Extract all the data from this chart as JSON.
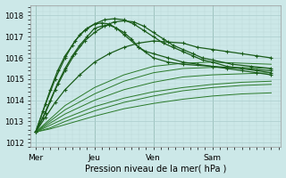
{
  "title": "Pression niveau de la mer( hPa )",
  "ylabel_ticks": [
    1012,
    1013,
    1014,
    1015,
    1016,
    1017,
    1018
  ],
  "ylim": [
    1011.8,
    1018.5
  ],
  "xlim": [
    -2,
    100
  ],
  "xtick_positions": [
    0,
    24,
    48,
    72
  ],
  "xtick_labels": [
    "Mer",
    "Jeu",
    "Ven",
    "Sam"
  ],
  "vlines": [
    0,
    24,
    48,
    72
  ],
  "bg_color": "#cce8e8",
  "grid_color_major": "#aacccc",
  "grid_color_minor": "#bcd8d8",
  "line_color_detailed": "#1a5c1a",
  "line_color_thin": "#2a7a2a",
  "series": [
    {
      "points": [
        [
          0,
          1012.5
        ],
        [
          3,
          1013.2
        ],
        [
          6,
          1014.0
        ],
        [
          9,
          1014.8
        ],
        [
          12,
          1015.5
        ],
        [
          15,
          1016.1
        ],
        [
          18,
          1016.6
        ],
        [
          21,
          1017.0
        ],
        [
          24,
          1017.4
        ],
        [
          27,
          1017.5
        ],
        [
          30,
          1017.55
        ],
        [
          33,
          1017.4
        ],
        [
          36,
          1017.2
        ],
        [
          39,
          1016.9
        ],
        [
          42,
          1016.5
        ],
        [
          45,
          1016.3
        ],
        [
          48,
          1016.2
        ],
        [
          54,
          1016.0
        ],
        [
          60,
          1015.8
        ],
        [
          66,
          1015.7
        ],
        [
          72,
          1015.6
        ],
        [
          78,
          1015.5
        ],
        [
          84,
          1015.4
        ],
        [
          90,
          1015.3
        ],
        [
          96,
          1015.2
        ]
      ],
      "style": "detailed"
    },
    {
      "points": [
        [
          0,
          1012.5
        ],
        [
          3,
          1013.5
        ],
        [
          6,
          1014.5
        ],
        [
          9,
          1015.4
        ],
        [
          12,
          1016.1
        ],
        [
          15,
          1016.6
        ],
        [
          18,
          1017.1
        ],
        [
          21,
          1017.4
        ],
        [
          24,
          1017.6
        ],
        [
          27,
          1017.65
        ],
        [
          30,
          1017.6
        ],
        [
          33,
          1017.4
        ],
        [
          36,
          1017.1
        ],
        [
          42,
          1016.5
        ],
        [
          48,
          1016.0
        ],
        [
          54,
          1015.8
        ],
        [
          60,
          1015.7
        ],
        [
          72,
          1015.6
        ],
        [
          84,
          1015.5
        ],
        [
          96,
          1015.4
        ]
      ],
      "style": "detailed"
    },
    {
      "points": [
        [
          0,
          1012.5
        ],
        [
          4,
          1013.8
        ],
        [
          8,
          1015.0
        ],
        [
          12,
          1016.0
        ],
        [
          16,
          1016.8
        ],
        [
          20,
          1017.3
        ],
        [
          24,
          1017.6
        ],
        [
          28,
          1017.8
        ],
        [
          32,
          1017.85
        ],
        [
          36,
          1017.8
        ],
        [
          40,
          1017.6
        ],
        [
          44,
          1017.3
        ],
        [
          48,
          1017.0
        ],
        [
          52,
          1016.7
        ],
        [
          56,
          1016.5
        ],
        [
          60,
          1016.3
        ],
        [
          64,
          1016.1
        ],
        [
          68,
          1015.9
        ],
        [
          72,
          1015.8
        ],
        [
          78,
          1015.6
        ],
        [
          84,
          1015.5
        ],
        [
          90,
          1015.4
        ],
        [
          96,
          1015.3
        ]
      ],
      "style": "detailed"
    },
    {
      "points": [
        [
          0,
          1012.5
        ],
        [
          4,
          1013.4
        ],
        [
          8,
          1014.5
        ],
        [
          12,
          1015.4
        ],
        [
          16,
          1016.2
        ],
        [
          20,
          1016.8
        ],
        [
          24,
          1017.2
        ],
        [
          28,
          1017.5
        ],
        [
          32,
          1017.7
        ],
        [
          36,
          1017.75
        ],
        [
          40,
          1017.7
        ],
        [
          44,
          1017.5
        ],
        [
          48,
          1017.2
        ],
        [
          52,
          1016.9
        ],
        [
          56,
          1016.6
        ],
        [
          60,
          1016.4
        ],
        [
          64,
          1016.2
        ],
        [
          68,
          1016.0
        ],
        [
          72,
          1015.9
        ],
        [
          80,
          1015.7
        ],
        [
          88,
          1015.6
        ],
        [
          96,
          1015.5
        ]
      ],
      "style": "detailed"
    },
    {
      "points": [
        [
          0,
          1012.5
        ],
        [
          4,
          1013.2
        ],
        [
          8,
          1013.9
        ],
        [
          12,
          1014.5
        ],
        [
          18,
          1015.2
        ],
        [
          24,
          1015.8
        ],
        [
          30,
          1016.2
        ],
        [
          36,
          1016.5
        ],
        [
          42,
          1016.7
        ],
        [
          48,
          1016.8
        ],
        [
          54,
          1016.75
        ],
        [
          60,
          1016.7
        ],
        [
          66,
          1016.5
        ],
        [
          72,
          1016.4
        ],
        [
          78,
          1016.3
        ],
        [
          84,
          1016.2
        ],
        [
          90,
          1016.1
        ],
        [
          96,
          1016.0
        ]
      ],
      "style": "detailed"
    },
    {
      "points": [
        [
          0,
          1012.5
        ],
        [
          6,
          1012.7
        ],
        [
          12,
          1013.0
        ],
        [
          24,
          1013.5
        ],
        [
          36,
          1013.9
        ],
        [
          48,
          1014.2
        ],
        [
          60,
          1014.45
        ],
        [
          72,
          1014.6
        ],
        [
          84,
          1014.7
        ],
        [
          96,
          1014.75
        ]
      ],
      "style": "thin"
    },
    {
      "points": [
        [
          0,
          1012.5
        ],
        [
          6,
          1012.65
        ],
        [
          12,
          1012.85
        ],
        [
          24,
          1013.25
        ],
        [
          36,
          1013.6
        ],
        [
          48,
          1013.85
        ],
        [
          60,
          1014.05
        ],
        [
          72,
          1014.2
        ],
        [
          84,
          1014.3
        ],
        [
          96,
          1014.35
        ]
      ],
      "style": "thin"
    },
    {
      "points": [
        [
          0,
          1012.5
        ],
        [
          12,
          1013.15
        ],
        [
          24,
          1013.7
        ],
        [
          36,
          1014.1
        ],
        [
          48,
          1014.4
        ],
        [
          60,
          1014.6
        ],
        [
          72,
          1014.75
        ],
        [
          84,
          1014.85
        ],
        [
          96,
          1014.9
        ]
      ],
      "style": "thin"
    },
    {
      "points": [
        [
          0,
          1012.5
        ],
        [
          12,
          1013.35
        ],
        [
          24,
          1014.0
        ],
        [
          36,
          1014.5
        ],
        [
          48,
          1014.85
        ],
        [
          60,
          1015.1
        ],
        [
          72,
          1015.2
        ],
        [
          84,
          1015.25
        ],
        [
          96,
          1015.3
        ]
      ],
      "style": "thin"
    },
    {
      "points": [
        [
          0,
          1012.5
        ],
        [
          12,
          1013.55
        ],
        [
          24,
          1014.3
        ],
        [
          36,
          1014.9
        ],
        [
          48,
          1015.3
        ],
        [
          60,
          1015.5
        ],
        [
          72,
          1015.55
        ],
        [
          84,
          1015.55
        ],
        [
          96,
          1015.5
        ]
      ],
      "style": "thin"
    },
    {
      "points": [
        [
          0,
          1012.5
        ],
        [
          12,
          1013.75
        ],
        [
          24,
          1014.6
        ],
        [
          36,
          1015.2
        ],
        [
          48,
          1015.6
        ],
        [
          60,
          1015.75
        ],
        [
          72,
          1015.8
        ],
        [
          84,
          1015.75
        ],
        [
          96,
          1015.7
        ]
      ],
      "style": "thin"
    }
  ]
}
